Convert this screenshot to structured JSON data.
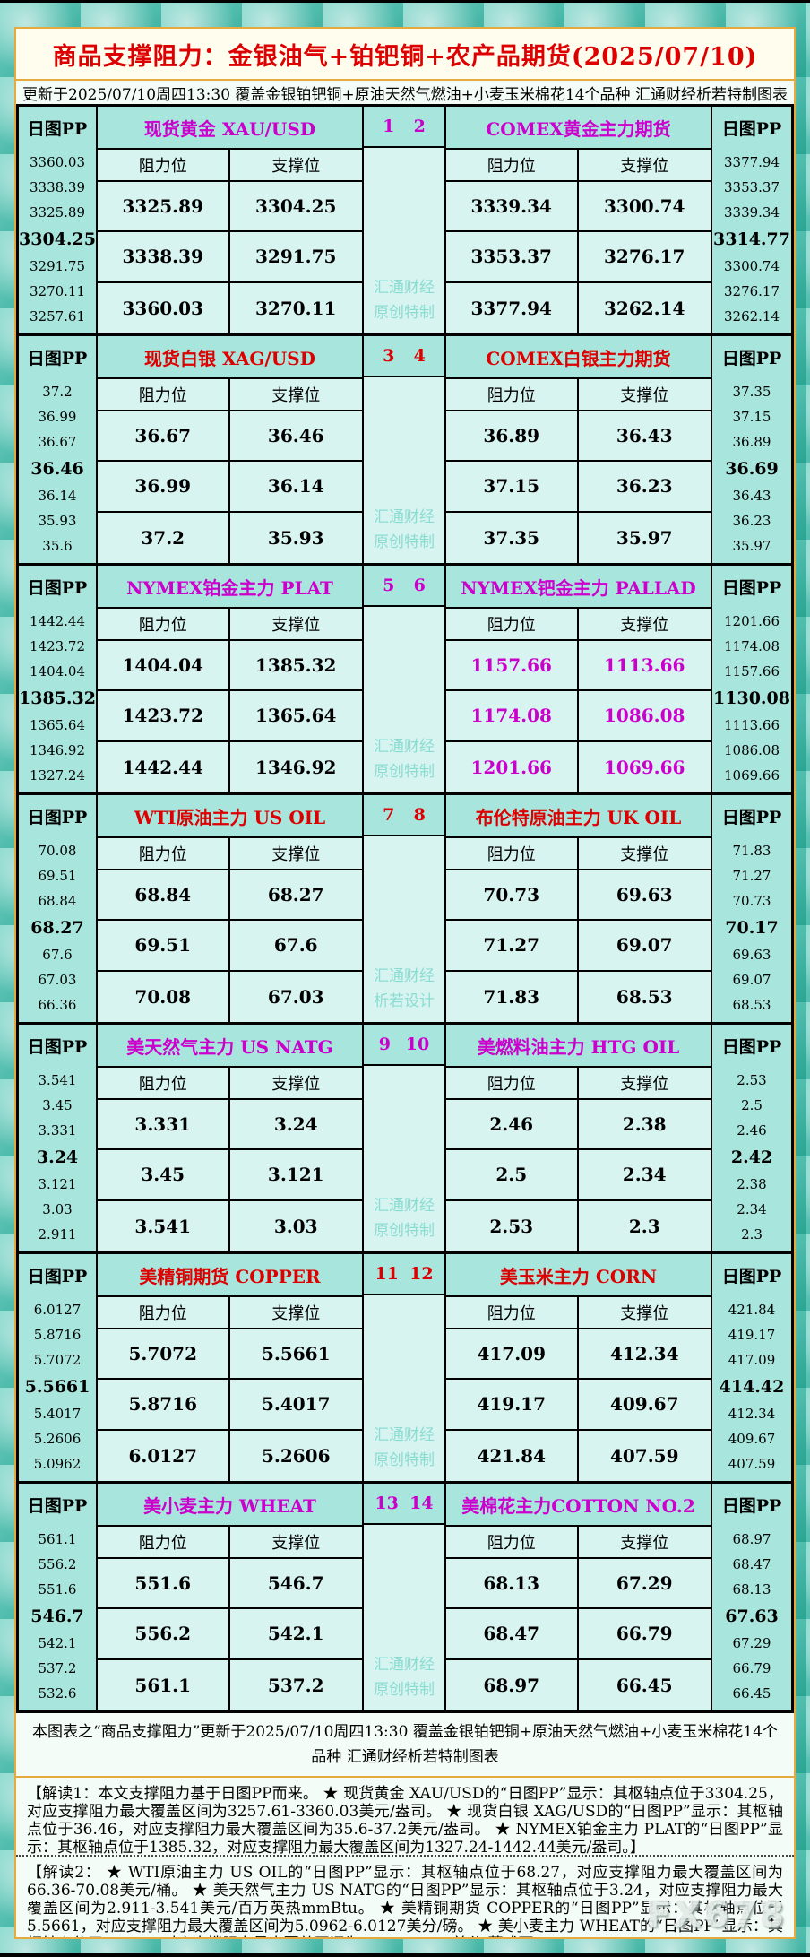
{
  "page": {
    "title": "商品支撑阻力：金银油气+铂钯铜+农产品期货(2025/07/10)",
    "subtitle": "更新于2025/07/10周四13:30  覆盖金银铂钯铜+原油天然气燃油+小麦玉米棉花14个品种  汇通财经析若特制图表",
    "pp_header": "日图PP",
    "resistance_header": "阻力位",
    "support_header": "支撑位",
    "footer_note": "本图表之“商品支撑阻力”更新于2025/07/10周四13:30  覆盖金银铂钯铜+原油天然气燃油+小麦玉米棉花14个品种  汇通财经析若特制图表",
    "interpretation1": "【解读1：本文支撑阻力基于日图PP而来。 ★ 现货黄金 XAU/USD的“日图PP”显示：其枢轴点位于3304.25，对应支撑阻力最大覆盖区间为3257.61-3360.03美元/盎司。 ★ 现货白银 XAG/USD的“日图PP”显示：其枢轴点位于36.46，对应支撑阻力最大覆盖区间为35.6-37.2美元/盎司。 ★ NYMEX铂金主力 PLAT的“日图PP”显示：其枢轴点位于1385.32，对应支撑阻力最大覆盖区间为1327.24-1442.44美元/盎司。】",
    "interpretation2": "【解读2： ★ WTI原油主力 US OIL的“日图PP”显示：其枢轴点位于68.27，对应支撑阻力最大覆盖区间为66.36-70.08美元/桶。 ★ 美天然气主力 US NATG的“日图PP”显示：其枢轴点位于3.24，对应支撑阻力最大覆盖区间为2.911-3.541美元/百万英热mmBtu。 ★ 美精铜期货 COPPER的“日图PP”显示：其枢轴点位于5.5661，对应支撑阻力最大覆盖区间为5.0962-6.0127美分/磅。 ★ 美小麦主力 WHEAT的“日图PP”显示：其枢轴点位于546.7，对应支撑阻力最大覆盖区间为532.6-561.1美分/蒲式耳。",
    "brand_watermark": "FX678"
  },
  "colors": {
    "magenta": "#cc00cc",
    "red": "#dd0000",
    "gold_border": "#e5a93d",
    "block_teal": "#a8e5dc",
    "cell_cyan": "#d8f4f0",
    "watermark_teal": "#8adcd2"
  },
  "blocks": [
    {
      "pair_numbers": [
        "1",
        "2"
      ],
      "accent": "magenta",
      "watermark": [
        "汇通财经",
        "原创特制"
      ],
      "left": {
        "title": "现货黄金 XAU/USD",
        "pp": [
          "3360.03",
          "3338.39",
          "3325.89",
          "3304.25",
          "3291.75",
          "3270.11",
          "3257.61"
        ],
        "rows": [
          [
            "3325.89",
            "3304.25"
          ],
          [
            "3338.39",
            "3291.75"
          ],
          [
            "3360.03",
            "3270.11"
          ]
        ]
      },
      "right": {
        "title": "COMEX黄金主力期货",
        "pp": [
          "3377.94",
          "3353.37",
          "3339.34",
          "3314.77",
          "3300.74",
          "3276.17",
          "3262.14"
        ],
        "rows": [
          [
            "3339.34",
            "3300.74"
          ],
          [
            "3353.37",
            "3276.17"
          ],
          [
            "3377.94",
            "3262.14"
          ]
        ]
      }
    },
    {
      "pair_numbers": [
        "3",
        "4"
      ],
      "accent": "red",
      "watermark": [
        "汇通财经",
        "原创特制"
      ],
      "left": {
        "title": "现货白银 XAG/USD",
        "pp": [
          "37.2",
          "36.99",
          "36.67",
          "36.46",
          "36.14",
          "35.93",
          "35.6"
        ],
        "rows": [
          [
            "36.67",
            "36.46"
          ],
          [
            "36.99",
            "36.14"
          ],
          [
            "37.2",
            "35.93"
          ]
        ]
      },
      "right": {
        "title": "COMEX白银主力期货",
        "pp": [
          "37.35",
          "37.15",
          "36.89",
          "36.69",
          "36.43",
          "36.23",
          "35.97"
        ],
        "rows": [
          [
            "36.89",
            "36.43"
          ],
          [
            "37.15",
            "36.23"
          ],
          [
            "37.35",
            "35.97"
          ]
        ]
      }
    },
    {
      "pair_numbers": [
        "5",
        "6"
      ],
      "accent": "magenta",
      "watermark": [
        "汇通财经",
        "原创特制"
      ],
      "left": {
        "title": "NYMEX铂金主力 PLAT",
        "pp": [
          "1442.44",
          "1423.72",
          "1404.04",
          "1385.32",
          "1365.64",
          "1346.92",
          "1327.24"
        ],
        "rows": [
          [
            "1404.04",
            "1385.32"
          ],
          [
            "1423.72",
            "1365.64"
          ],
          [
            "1442.44",
            "1346.92"
          ]
        ]
      },
      "right": {
        "title": "NYMEX钯金主力 PALLAD",
        "value_accent": true,
        "pp": [
          "1201.66",
          "1174.08",
          "1157.66",
          "1130.08",
          "1113.66",
          "1086.08",
          "1069.66"
        ],
        "rows": [
          [
            "1157.66",
            "1113.66"
          ],
          [
            "1174.08",
            "1086.08"
          ],
          [
            "1201.66",
            "1069.66"
          ]
        ]
      }
    },
    {
      "pair_numbers": [
        "7",
        "8"
      ],
      "accent": "red",
      "watermark": [
        "汇通财经",
        "析若设计"
      ],
      "left": {
        "title": "WTI原油主力 US OIL",
        "pp": [
          "70.08",
          "69.51",
          "68.84",
          "68.27",
          "67.6",
          "67.03",
          "66.36"
        ],
        "rows": [
          [
            "68.84",
            "68.27"
          ],
          [
            "69.51",
            "67.6"
          ],
          [
            "70.08",
            "67.03"
          ]
        ]
      },
      "right": {
        "title": "布伦特原油主力 UK OIL",
        "pp": [
          "71.83",
          "71.27",
          "70.73",
          "70.17",
          "69.63",
          "69.07",
          "68.53"
        ],
        "rows": [
          [
            "70.73",
            "69.63"
          ],
          [
            "71.27",
            "69.07"
          ],
          [
            "71.83",
            "68.53"
          ]
        ]
      }
    },
    {
      "pair_numbers": [
        "9",
        "10"
      ],
      "accent": "magenta",
      "watermark": [
        "汇通财经",
        "原创特制"
      ],
      "left": {
        "title": "美天然气主力 US NATG",
        "pp": [
          "3.541",
          "3.45",
          "3.331",
          "3.24",
          "3.121",
          "3.03",
          "2.911"
        ],
        "rows": [
          [
            "3.331",
            "3.24"
          ],
          [
            "3.45",
            "3.121"
          ],
          [
            "3.541",
            "3.03"
          ]
        ]
      },
      "right": {
        "title": "美燃料油主力 HTG OIL",
        "pp": [
          "2.53",
          "2.5",
          "2.46",
          "2.42",
          "2.38",
          "2.34",
          "2.3"
        ],
        "rows": [
          [
            "2.46",
            "2.38"
          ],
          [
            "2.5",
            "2.34"
          ],
          [
            "2.53",
            "2.3"
          ]
        ]
      }
    },
    {
      "pair_numbers": [
        "11",
        "12"
      ],
      "accent": "red",
      "watermark": [
        "汇通财经",
        "原创特制"
      ],
      "left": {
        "title": "美精铜期货 COPPER",
        "pp": [
          "6.0127",
          "5.8716",
          "5.7072",
          "5.5661",
          "5.4017",
          "5.2606",
          "5.0962"
        ],
        "rows": [
          [
            "5.7072",
            "5.5661"
          ],
          [
            "5.8716",
            "5.4017"
          ],
          [
            "6.0127",
            "5.2606"
          ]
        ]
      },
      "right": {
        "title": "美玉米主力 CORN",
        "pp": [
          "421.84",
          "419.17",
          "417.09",
          "414.42",
          "412.34",
          "409.67",
          "407.59"
        ],
        "rows": [
          [
            "417.09",
            "412.34"
          ],
          [
            "419.17",
            "409.67"
          ],
          [
            "421.84",
            "407.59"
          ]
        ]
      }
    },
    {
      "pair_numbers": [
        "13",
        "14"
      ],
      "accent": "magenta",
      "watermark": [
        "汇通财经",
        "原创特制"
      ],
      "left": {
        "title": "美小麦主力 WHEAT",
        "pp": [
          "561.1",
          "556.2",
          "551.6",
          "546.7",
          "542.1",
          "537.2",
          "532.6"
        ],
        "rows": [
          [
            "551.6",
            "546.7"
          ],
          [
            "556.2",
            "542.1"
          ],
          [
            "561.1",
            "537.2"
          ]
        ]
      },
      "right": {
        "title": "美棉花主力COTTON NO.2",
        "pp": [
          "68.97",
          "68.47",
          "68.13",
          "67.63",
          "67.29",
          "66.79",
          "66.45"
        ],
        "rows": [
          [
            "68.13",
            "67.29"
          ],
          [
            "68.47",
            "66.79"
          ],
          [
            "68.97",
            "66.45"
          ]
        ]
      }
    }
  ],
  "chart_data": {
    "type": "table",
    "title": "商品支撑阻力：金银油气+铂钯铜+农产品期货(2025/07/10)",
    "updated": "2025/07/10 周四 13:30",
    "instruments": [
      {
        "name": "现货黄金 XAU/USD",
        "pivot": 3304.25,
        "pp_ladder": [
          3360.03,
          3338.39,
          3325.89,
          3304.25,
          3291.75,
          3270.11,
          3257.61
        ],
        "resistance": [
          3325.89,
          3338.39,
          3360.03
        ],
        "support": [
          3304.25,
          3291.75,
          3270.11
        ]
      },
      {
        "name": "COMEX黄金主力期货",
        "pivot": 3314.77,
        "pp_ladder": [
          3377.94,
          3353.37,
          3339.34,
          3314.77,
          3300.74,
          3276.17,
          3262.14
        ],
        "resistance": [
          3339.34,
          3353.37,
          3377.94
        ],
        "support": [
          3300.74,
          3276.17,
          3262.14
        ]
      },
      {
        "name": "现货白银 XAG/USD",
        "pivot": 36.46,
        "pp_ladder": [
          37.2,
          36.99,
          36.67,
          36.46,
          36.14,
          35.93,
          35.6
        ],
        "resistance": [
          36.67,
          36.99,
          37.2
        ],
        "support": [
          36.46,
          36.14,
          35.93
        ]
      },
      {
        "name": "COMEX白银主力期货",
        "pivot": 36.69,
        "pp_ladder": [
          37.35,
          37.15,
          36.89,
          36.69,
          36.43,
          36.23,
          35.97
        ],
        "resistance": [
          36.89,
          37.15,
          37.35
        ],
        "support": [
          36.43,
          36.23,
          35.97
        ]
      },
      {
        "name": "NYMEX铂金主力 PLAT",
        "pivot": 1385.32,
        "pp_ladder": [
          1442.44,
          1423.72,
          1404.04,
          1385.32,
          1365.64,
          1346.92,
          1327.24
        ],
        "resistance": [
          1404.04,
          1423.72,
          1442.44
        ],
        "support": [
          1385.32,
          1365.64,
          1346.92
        ]
      },
      {
        "name": "NYMEX钯金主力 PALLAD",
        "pivot": 1130.08,
        "pp_ladder": [
          1201.66,
          1174.08,
          1157.66,
          1130.08,
          1113.66,
          1086.08,
          1069.66
        ],
        "resistance": [
          1157.66,
          1174.08,
          1201.66
        ],
        "support": [
          1113.66,
          1086.08,
          1069.66
        ]
      },
      {
        "name": "WTI原油主力 US OIL",
        "pivot": 68.27,
        "pp_ladder": [
          70.08,
          69.51,
          68.84,
          68.27,
          67.6,
          67.03,
          66.36
        ],
        "resistance": [
          68.84,
          69.51,
          70.08
        ],
        "support": [
          68.27,
          67.6,
          67.03
        ]
      },
      {
        "name": "布伦特原油主力 UK OIL",
        "pivot": 70.17,
        "pp_ladder": [
          71.83,
          71.27,
          70.73,
          70.17,
          69.63,
          69.07,
          68.53
        ],
        "resistance": [
          70.73,
          71.27,
          71.83
        ],
        "support": [
          69.63,
          69.07,
          68.53
        ]
      },
      {
        "name": "美天然气主力 US NATG",
        "pivot": 3.24,
        "pp_ladder": [
          3.541,
          3.45,
          3.331,
          3.24,
          3.121,
          3.03,
          2.911
        ],
        "resistance": [
          3.331,
          3.45,
          3.541
        ],
        "support": [
          3.24,
          3.121,
          3.03
        ]
      },
      {
        "name": "美燃料油主力 HTG OIL",
        "pivot": 2.42,
        "pp_ladder": [
          2.53,
          2.5,
          2.46,
          2.42,
          2.38,
          2.34,
          2.3
        ],
        "resistance": [
          2.46,
          2.5,
          2.53
        ],
        "support": [
          2.38,
          2.34,
          2.3
        ]
      },
      {
        "name": "美精铜期货 COPPER",
        "pivot": 5.5661,
        "pp_ladder": [
          6.0127,
          5.8716,
          5.7072,
          5.5661,
          5.4017,
          5.2606,
          5.0962
        ],
        "resistance": [
          5.7072,
          5.8716,
          6.0127
        ],
        "support": [
          5.5661,
          5.4017,
          5.2606
        ]
      },
      {
        "name": "美玉米主力 CORN",
        "pivot": 414.42,
        "pp_ladder": [
          421.84,
          419.17,
          417.09,
          414.42,
          412.34,
          409.67,
          407.59
        ],
        "resistance": [
          417.09,
          419.17,
          421.84
        ],
        "support": [
          412.34,
          409.67,
          407.59
        ]
      },
      {
        "name": "美小麦主力 WHEAT",
        "pivot": 546.7,
        "pp_ladder": [
          561.1,
          556.2,
          551.6,
          546.7,
          542.1,
          537.2,
          532.6
        ],
        "resistance": [
          551.6,
          556.2,
          561.1
        ],
        "support": [
          546.7,
          542.1,
          537.2
        ]
      },
      {
        "name": "美棉花主力COTTON NO.2",
        "pivot": 67.63,
        "pp_ladder": [
          68.97,
          68.47,
          68.13,
          67.63,
          67.29,
          66.79,
          66.45
        ],
        "resistance": [
          68.13,
          68.47,
          68.97
        ],
        "support": [
          67.29,
          66.79,
          66.45
        ]
      }
    ]
  }
}
